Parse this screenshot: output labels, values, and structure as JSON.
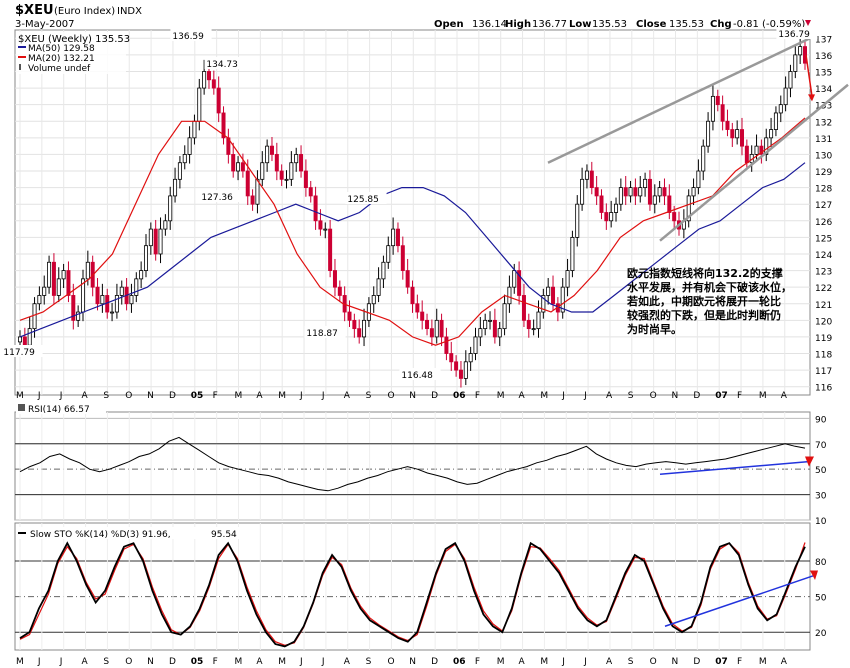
{
  "header": {
    "symbol": "$XEU",
    "name": "(Euro Index)",
    "exchange": "INDX",
    "date": "3-May-2007",
    "open_label": "Open",
    "open": "136.14",
    "high_label": "High",
    "high": "136.77",
    "low_label": "Low",
    "low": "135.53",
    "close_label": "Close",
    "close": "135.53",
    "chg_label": "Chg",
    "chg": "-0.81 (-0.59%)"
  },
  "legend": {
    "price": "$XEU (Weekly) 135.53",
    "ma50": "MA(50) 129.58",
    "ma20": "MA(20) 132.21",
    "volume": "Volume undef"
  },
  "annotation": {
    "lines": [
      "欧元指数短线将向132.2的支撑",
      "水平发展，并有机会下破该水位，",
      "若如此，中期欧元将展开一轮比",
      "较强烈的下跌，但是此时判断仍",
      "为时尚早。"
    ]
  },
  "price_labels": [
    "136.59",
    "134.73",
    "127.36",
    "125.85",
    "118.87",
    "116.48",
    "117.79",
    "136.79"
  ],
  "rsi": {
    "label": "RSI(14) 66.57"
  },
  "sto": {
    "label_black": "Slow STO %K(14) %D(3) 91.96,",
    "label_red": "95.54"
  },
  "colors": {
    "up": "#ffffff",
    "down": "#cc0033",
    "ma20": "#e01010",
    "ma50": "#1a1a99",
    "trend": "#999999",
    "blue_trend": "#2233dd"
  },
  "chart_data": [
    {
      "type": "candlestick",
      "title": "$XEU (Euro Index) Weekly",
      "x_ticks": [
        "M",
        "J",
        "J",
        "A",
        "S",
        "O",
        "N",
        "D",
        "05",
        "F",
        "M",
        "A",
        "M",
        "J",
        "J",
        "A",
        "S",
        "O",
        "N",
        "D",
        "06",
        "F",
        "M",
        "A",
        "M",
        "J",
        "J",
        "A",
        "S",
        "O",
        "N",
        "D",
        "07",
        "F",
        "M",
        "A"
      ],
      "ylim": [
        115.5,
        137.5
      ],
      "y_ticks": [
        116,
        117,
        118,
        119,
        120,
        121,
        122,
        123,
        124,
        125,
        126,
        127,
        128,
        129,
        130,
        131,
        132,
        133,
        134,
        135,
        136,
        137
      ],
      "series": [
        {
          "name": "$XEU (Weekly)",
          "close": [
            119,
            118.5,
            119.5,
            121,
            121.5,
            122,
            123.5,
            121.5,
            122.5,
            123,
            121.5,
            120,
            120.5,
            122.5,
            123.5,
            122,
            121,
            121.5,
            120.5,
            120.5,
            121.5,
            122,
            121,
            121.5,
            122.5,
            123,
            124.5,
            125.5,
            124,
            125.5,
            126,
            127.5,
            128.5,
            129.5,
            130,
            131,
            132,
            134,
            135,
            134.5,
            134,
            132.5,
            131,
            130,
            129,
            129.5,
            129,
            127.5,
            127,
            128.5,
            129.5,
            130.5,
            130,
            129,
            128.5,
            128.5,
            129.5,
            130,
            129,
            128,
            127.5,
            126,
            125.5,
            125.5,
            123,
            122,
            121.5,
            120.5,
            120,
            119.5,
            119,
            120,
            121,
            121.5,
            122.5,
            123.5,
            124.5,
            125.5,
            124.5,
            123,
            122,
            121,
            120.5,
            120,
            119.5,
            119,
            120,
            119,
            118,
            117.5,
            117,
            116.5,
            117.5,
            118,
            119,
            119.5,
            120,
            120,
            119,
            119.5,
            121,
            122,
            123,
            121.5,
            120,
            119.5,
            119.5,
            120.5,
            121.5,
            122,
            121,
            120.5,
            122,
            123,
            125,
            127,
            128.5,
            129,
            128,
            127.5,
            126.5,
            126,
            126.5,
            127,
            128,
            127.5,
            128,
            127.5,
            128,
            128.5,
            127,
            127.5,
            128,
            127.5,
            126.5,
            126,
            125.5,
            126,
            127.5,
            128,
            129,
            130.5,
            132,
            133.5,
            133,
            132,
            131.5,
            131,
            131.5,
            130.5,
            129.5,
            130,
            130.5,
            130,
            131,
            131.5,
            132.5,
            133,
            134,
            135,
            136,
            136.5,
            135.5
          ]
        },
        {
          "name": "MA(50)",
          "values": [
            119,
            119.5,
            120,
            120.5,
            121,
            121.5,
            122,
            123,
            124,
            125,
            125.5,
            126,
            126.5,
            127,
            126.5,
            126,
            126.5,
            127.5,
            128,
            128,
            127.5,
            126.5,
            125,
            123.5,
            122,
            121,
            120.5,
            120.5,
            121.5,
            122.5,
            123.5,
            124.5,
            125.5,
            126,
            127,
            128,
            128.5,
            129.5
          ]
        },
        {
          "name": "MA(20)",
          "values": [
            120,
            120.5,
            121.5,
            122.5,
            124,
            127,
            130,
            132,
            132,
            131,
            129,
            127,
            124,
            122,
            121,
            120.5,
            120,
            119,
            118.5,
            119,
            120.5,
            121.5,
            121,
            120.5,
            121.5,
            123,
            125,
            126,
            126.5,
            127,
            127.5,
            129,
            130,
            131,
            132.2
          ]
        }
      ],
      "price_labels": [
        136.59,
        134.73,
        127.36,
        125.85,
        118.87,
        116.48,
        117.79,
        136.79
      ]
    },
    {
      "type": "line",
      "title": "RSI(14) 66.57",
      "ylim": [
        10,
        95
      ],
      "y_ticks": [
        10,
        30,
        50,
        70,
        90
      ],
      "series": [
        {
          "name": "RSI(14)",
          "values": [
            48,
            52,
            55,
            60,
            62,
            58,
            55,
            50,
            48,
            50,
            53,
            56,
            60,
            62,
            66,
            72,
            75,
            70,
            65,
            60,
            55,
            52,
            50,
            48,
            46,
            45,
            43,
            40,
            38,
            36,
            34,
            33,
            35,
            38,
            40,
            43,
            45,
            48,
            50,
            52,
            50,
            47,
            45,
            43,
            40,
            38,
            39,
            42,
            45,
            48,
            50,
            52,
            55,
            57,
            60,
            62,
            65,
            68,
            62,
            58,
            55,
            53,
            52,
            54,
            55,
            56,
            55,
            54,
            55,
            56,
            57,
            58,
            60,
            62,
            64,
            66,
            68,
            70,
            68,
            66.57
          ]
        }
      ]
    },
    {
      "type": "line",
      "title": "Slow STO %K(14) %D(3) 91.96, 95.54",
      "ylim": [
        10,
        110
      ],
      "y_ticks": [
        20,
        50,
        80
      ],
      "series": [
        {
          "name": "%K(14)",
          "values": [
            15,
            20,
            40,
            55,
            80,
            95,
            80,
            60,
            45,
            55,
            75,
            92,
            95,
            80,
            55,
            35,
            20,
            18,
            25,
            40,
            60,
            85,
            95,
            80,
            55,
            35,
            20,
            10,
            8,
            12,
            25,
            45,
            70,
            85,
            75,
            55,
            40,
            30,
            25,
            20,
            15,
            12,
            20,
            45,
            70,
            90,
            95,
            80,
            55,
            35,
            25,
            20,
            40,
            70,
            95,
            90,
            80,
            70,
            55,
            40,
            30,
            25,
            30,
            50,
            70,
            85,
            80,
            60,
            40,
            25,
            20,
            25,
            45,
            75,
            92,
            95,
            85,
            60,
            40,
            30,
            35,
            55,
            75,
            91.96
          ]
        },
        {
          "name": "%D(3)",
          "values": [
            14,
            18,
            35,
            52,
            78,
            92,
            82,
            62,
            48,
            52,
            72,
            90,
            94,
            82,
            58,
            38,
            22,
            18,
            24,
            38,
            58,
            82,
            94,
            82,
            58,
            38,
            22,
            12,
            9,
            11,
            24,
            44,
            68,
            83,
            77,
            57,
            42,
            32,
            26,
            21,
            16,
            13,
            18,
            42,
            68,
            88,
            94,
            82,
            58,
            38,
            27,
            21,
            38,
            68,
            92,
            91,
            82,
            72,
            57,
            42,
            32,
            26,
            29,
            48,
            68,
            83,
            82,
            62,
            42,
            27,
            21,
            24,
            43,
            73,
            90,
            95,
            87,
            62,
            42,
            31,
            34,
            53,
            73,
            95.54
          ]
        }
      ]
    }
  ]
}
